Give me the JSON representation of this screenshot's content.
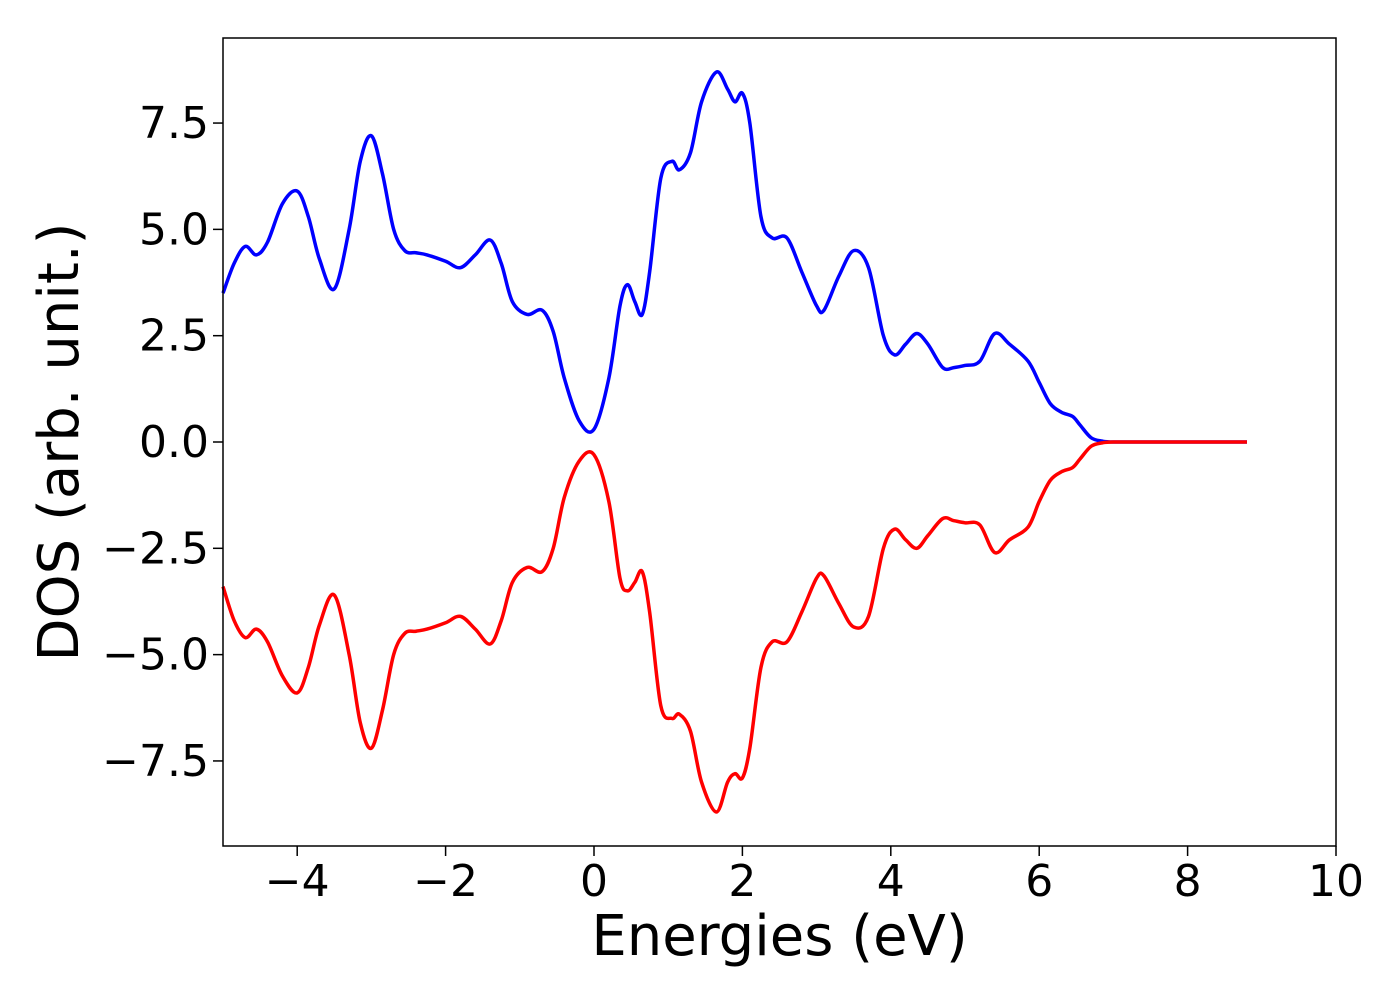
{
  "chart_data": {
    "type": "line",
    "title": "",
    "xlabel": "Energies (eV)",
    "ylabel": "DOS (arb. unit.)",
    "xlim": [
      -5,
      10
    ],
    "ylim": [
      -9.5,
      9.5
    ],
    "xticks": [
      -4,
      -2,
      0,
      2,
      4,
      6,
      8,
      10
    ],
    "xtick_labels": [
      "−4",
      "−2",
      "0",
      "2",
      "4",
      "6",
      "8",
      "10"
    ],
    "yticks": [
      7.5,
      5.0,
      2.5,
      0.0,
      -2.5,
      -5.0,
      -7.5
    ],
    "ytick_labels": [
      "7.5",
      "5.0",
      "2.5",
      "0.0",
      "−2.5",
      "−5.0",
      "−7.5"
    ],
    "grid": false,
    "series": [
      {
        "color": "#0000ff",
        "x": [
          -5.0,
          -4.85,
          -4.7,
          -4.55,
          -4.4,
          -4.2,
          -4.0,
          -3.85,
          -3.7,
          -3.5,
          -3.3,
          -3.15,
          -3.0,
          -2.85,
          -2.7,
          -2.55,
          -2.4,
          -2.25,
          -2.0,
          -1.8,
          -1.6,
          -1.4,
          -1.25,
          -1.1,
          -0.9,
          -0.7,
          -0.55,
          -0.4,
          -0.2,
          0.0,
          0.2,
          0.35,
          0.45,
          0.55,
          0.65,
          0.75,
          0.9,
          1.05,
          1.15,
          1.3,
          1.45,
          1.65,
          1.8,
          1.9,
          2.0,
          2.1,
          2.25,
          2.4,
          2.6,
          2.8,
          3.0,
          3.1,
          3.3,
          3.5,
          3.7,
          3.9,
          4.05,
          4.2,
          4.35,
          4.5,
          4.7,
          4.85,
          5.0,
          5.2,
          5.4,
          5.6,
          5.85,
          6.0,
          6.15,
          6.3,
          6.45,
          6.55,
          6.7,
          6.85,
          7.0,
          7.5,
          8.0,
          8.5,
          8.8
        ],
        "y": [
          3.5,
          4.2,
          4.6,
          4.4,
          4.7,
          5.6,
          5.9,
          5.3,
          4.3,
          3.6,
          5.0,
          6.6,
          7.2,
          6.3,
          5.0,
          4.5,
          4.45,
          4.4,
          4.25,
          4.1,
          4.4,
          4.75,
          4.2,
          3.3,
          3.0,
          3.1,
          2.6,
          1.5,
          0.5,
          0.3,
          1.5,
          3.2,
          3.7,
          3.3,
          3.0,
          4.0,
          6.2,
          6.6,
          6.4,
          6.8,
          8.0,
          8.7,
          8.3,
          8.0,
          8.2,
          7.5,
          5.3,
          4.8,
          4.8,
          4.0,
          3.2,
          3.1,
          3.9,
          4.5,
          4.1,
          2.5,
          2.05,
          2.3,
          2.55,
          2.3,
          1.75,
          1.75,
          1.8,
          1.9,
          2.55,
          2.3,
          1.9,
          1.4,
          0.9,
          0.7,
          0.6,
          0.4,
          0.1,
          0.02,
          0.0,
          0.0,
          0.0,
          0.0,
          0.0
        ]
      },
      {
        "color": "#ff0000",
        "x": [
          -5.0,
          -4.85,
          -4.7,
          -4.55,
          -4.4,
          -4.2,
          -4.0,
          -3.85,
          -3.7,
          -3.5,
          -3.3,
          -3.15,
          -3.0,
          -2.85,
          -2.7,
          -2.55,
          -2.4,
          -2.25,
          -2.0,
          -1.8,
          -1.6,
          -1.4,
          -1.25,
          -1.1,
          -0.9,
          -0.7,
          -0.55,
          -0.4,
          -0.2,
          0.0,
          0.2,
          0.35,
          0.45,
          0.55,
          0.65,
          0.75,
          0.9,
          1.05,
          1.15,
          1.3,
          1.45,
          1.65,
          1.8,
          1.9,
          2.0,
          2.1,
          2.25,
          2.4,
          2.6,
          2.8,
          3.0,
          3.1,
          3.3,
          3.5,
          3.7,
          3.9,
          4.05,
          4.2,
          4.35,
          4.5,
          4.7,
          4.85,
          5.0,
          5.2,
          5.4,
          5.6,
          5.85,
          6.0,
          6.15,
          6.3,
          6.45,
          6.55,
          6.7,
          6.85,
          7.0,
          7.5,
          8.0,
          8.5,
          8.8
        ],
        "y": [
          -3.4,
          -4.2,
          -4.6,
          -4.4,
          -4.7,
          -5.5,
          -5.9,
          -5.3,
          -4.3,
          -3.6,
          -5.0,
          -6.6,
          -7.2,
          -6.3,
          -5.0,
          -4.5,
          -4.45,
          -4.4,
          -4.25,
          -4.1,
          -4.4,
          -4.75,
          -4.2,
          -3.3,
          -2.95,
          -3.05,
          -2.5,
          -1.3,
          -0.45,
          -0.3,
          -1.4,
          -3.2,
          -3.5,
          -3.3,
          -3.05,
          -4.0,
          -6.2,
          -6.5,
          -6.4,
          -6.8,
          -8.0,
          -8.7,
          -8.0,
          -7.8,
          -7.9,
          -7.2,
          -5.3,
          -4.7,
          -4.7,
          -4.0,
          -3.2,
          -3.15,
          -3.8,
          -4.35,
          -4.1,
          -2.5,
          -2.05,
          -2.3,
          -2.5,
          -2.2,
          -1.8,
          -1.85,
          -1.9,
          -1.95,
          -2.6,
          -2.3,
          -2.0,
          -1.4,
          -0.9,
          -0.7,
          -0.6,
          -0.4,
          -0.1,
          -0.02,
          0.0,
          0.0,
          0.0,
          0.0,
          0.0
        ]
      }
    ]
  }
}
